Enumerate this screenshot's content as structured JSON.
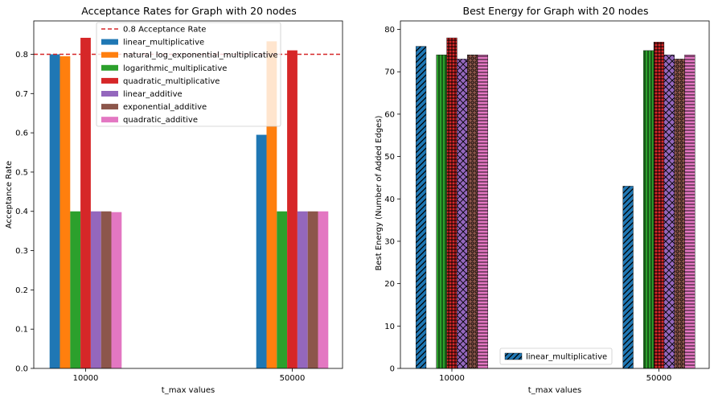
{
  "chart_data": [
    {
      "type": "bar",
      "title": "Acceptance Rates for Graph with 20 nodes",
      "xlabel": "t_max values",
      "ylabel": "Acceptance Rate",
      "categories": [
        "10000",
        "50000"
      ],
      "ylim": [
        0,
        0.885
      ],
      "yticks": [
        "0.0",
        "0.1",
        "0.2",
        "0.3",
        "0.4",
        "0.5",
        "0.6",
        "0.7",
        "0.8"
      ],
      "grid": false,
      "legend_placement": "upper-center",
      "reference_line": {
        "label": "0.8 Acceptance Rate",
        "value": 0.8,
        "color": "#d62728",
        "style": "dashed"
      },
      "series": [
        {
          "name": "linear_multiplicative",
          "color": "#1f77b4",
          "values": [
            0.8,
            0.595
          ]
        },
        {
          "name": "natural_log_exponential_multiplicative",
          "color": "#ff7f0e",
          "values": [
            0.795,
            0.833
          ]
        },
        {
          "name": "logarithmic_multiplicative",
          "color": "#2ca02c",
          "values": [
            0.4,
            0.4
          ]
        },
        {
          "name": "quadratic_multiplicative",
          "color": "#d62728",
          "values": [
            0.842,
            0.81
          ]
        },
        {
          "name": "linear_additive",
          "color": "#9467bd",
          "values": [
            0.4,
            0.4
          ]
        },
        {
          "name": "exponential_additive",
          "color": "#8c564b",
          "values": [
            0.4,
            0.4
          ]
        },
        {
          "name": "quadratic_additive",
          "color": "#e377c2",
          "values": [
            0.398,
            0.4
          ]
        }
      ]
    },
    {
      "type": "bar",
      "title": "Best Energy for Graph with 20 nodes",
      "xlabel": "t_max values",
      "ylabel": "Best Energy (Number of Added Edges)",
      "categories": [
        "10000",
        "50000"
      ],
      "ylim": [
        0,
        82
      ],
      "yticks": [
        "0",
        "10",
        "20",
        "30",
        "40",
        "50",
        "60",
        "70",
        "80"
      ],
      "grid": false,
      "legend_placement": "lower-center",
      "series": [
        {
          "name": "linear_multiplicative",
          "color": "#1f77b4",
          "hatch": "diagonal",
          "values": [
            76,
            43
          ]
        },
        {
          "color": "#ff7f0e",
          "hatch": "none",
          "values": [
            0,
            0
          ]
        },
        {
          "color": "#2ca02c",
          "hatch": "vertical",
          "values": [
            74,
            75
          ]
        },
        {
          "color": "#d62728",
          "hatch": "grid",
          "values": [
            78,
            77
          ]
        },
        {
          "color": "#9467bd",
          "hatch": "cross",
          "values": [
            73,
            74
          ]
        },
        {
          "color": "#8c564b",
          "hatch": "circles",
          "values": [
            74,
            73
          ]
        },
        {
          "color": "#e377c2",
          "hatch": "horizontal",
          "values": [
            74,
            74
          ]
        }
      ]
    }
  ]
}
